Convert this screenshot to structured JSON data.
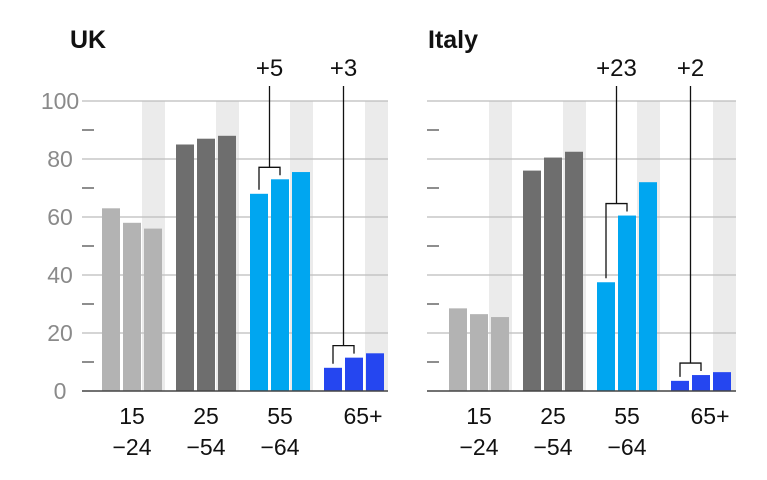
{
  "chart_data": [
    {
      "type": "bar",
      "title": "UK",
      "ylim": [
        0,
        100
      ],
      "yticks": [
        "0",
        "20",
        "40",
        "60",
        "80",
        "100"
      ],
      "categories": [
        [
          "15",
          "−24"
        ],
        [
          "25",
          "−54"
        ],
        [
          "55",
          "−64"
        ],
        [
          "65+"
        ]
      ],
      "values": [
        [
          63,
          58,
          56
        ],
        [
          85,
          87,
          88
        ],
        [
          68,
          73,
          75.5
        ],
        [
          8,
          11.5,
          13
        ]
      ],
      "annotations": [
        {
          "category": "55−64",
          "label": "+5"
        },
        {
          "category": "65+",
          "label": "+3"
        }
      ]
    },
    {
      "type": "bar",
      "title": "Italy",
      "ylim": [
        0,
        100
      ],
      "yticks": [
        "0",
        "20",
        "40",
        "60",
        "80",
        "100"
      ],
      "categories": [
        [
          "15",
          "−24"
        ],
        [
          "25",
          "−54"
        ],
        [
          "55",
          "−64"
        ],
        [
          "65+"
        ]
      ],
      "values": [
        [
          28.5,
          26.5,
          25.5
        ],
        [
          76,
          80.5,
          82.5
        ],
        [
          37.5,
          60.5,
          72
        ],
        [
          3.5,
          5.5,
          6.5
        ]
      ],
      "annotations": [
        {
          "category": "55−64",
          "label": "+23"
        },
        {
          "category": "65+",
          "label": "+2"
        }
      ]
    }
  ],
  "colors": {
    "group_colors": [
      "#b3b3b3",
      "#6e6e6e",
      "#00a6f0",
      "#2546f0"
    ],
    "shade": "#ebebeb",
    "gridline": "#bcbcbc",
    "axis": "#444444"
  }
}
